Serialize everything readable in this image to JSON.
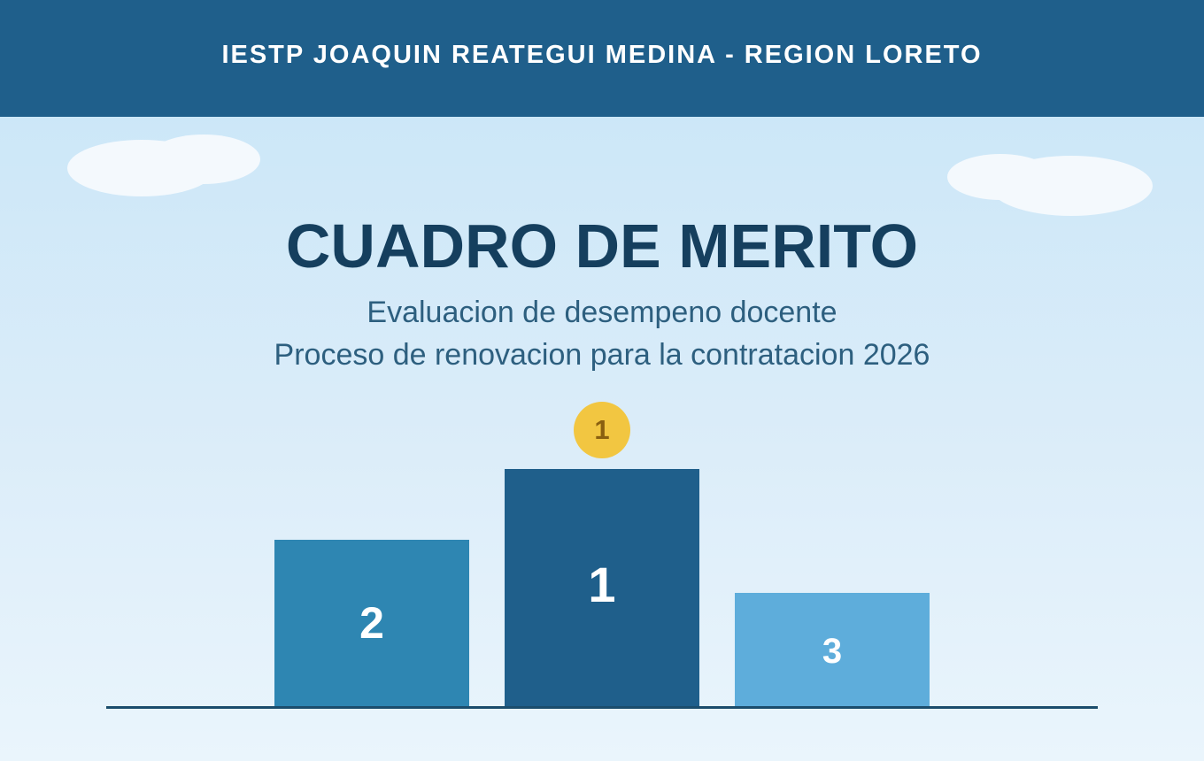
{
  "header": {
    "institution": "IESTP JOAQUIN REATEGUI MEDINA - REGION LORETO"
  },
  "title": "CUADRO DE MERITO",
  "subtitles": [
    "Evaluacion de desempeno docente",
    "Proceso de renovacion para la contratacion 2026"
  ],
  "medal": {
    "label": "1",
    "color": "#f2c641"
  },
  "podium": [
    {
      "rank": "2",
      "color": "#2e86b2"
    },
    {
      "rank": "1",
      "color": "#1f5f8b"
    },
    {
      "rank": "3",
      "color": "#5eaddb"
    }
  ],
  "colors": {
    "banner": "#1f5f8b",
    "title": "#153f5e",
    "subtitle": "#2d5f7f"
  }
}
